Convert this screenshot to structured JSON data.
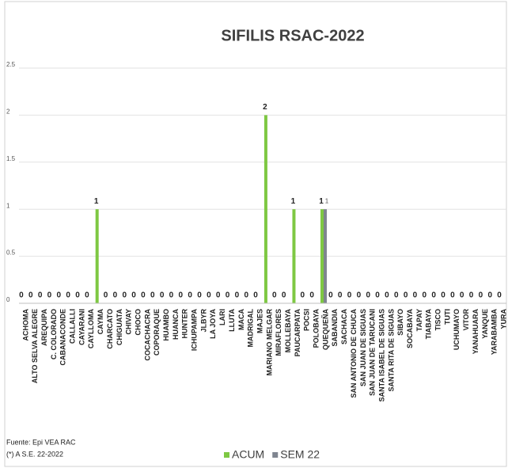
{
  "chart_data": {
    "type": "bar",
    "title": "SIFILIS RSAC-2022",
    "annotations": [
      "Fuente: Epi VEA RAC",
      "(*) A S.E. 22-2022"
    ],
    "categories": [
      "ACHOMA",
      "ALTO SELVA ALEGRE",
      "AREQUIPA",
      "C. COLORADO",
      "CABANACONDE",
      "CALLALLI",
      "CAYARANI",
      "CAYLLOMA",
      "CAYMA",
      "CHARCATO",
      "CHIGUATA",
      "CHIVAY",
      "CHOCO",
      "COCACHACRA",
      "COPORAQUE",
      "HUAMBO",
      "HUANCA",
      "HUNTER",
      "ICHUPAMPA",
      "JLBYR",
      "LA JOYA",
      "LARI",
      "LLUTA",
      "MACA",
      "MADRIGAL",
      "MAJES",
      "MARIANO MELGAR",
      "MIRAFLORES",
      "MOLLEBAYA",
      "PAUCARPATA",
      "POCSI",
      "POLOBAYA",
      "QUEQUEÑA",
      "SABANDIA",
      "SACHACA",
      "SAN ANTONIO DE CHUCA",
      "SAN JUAN DE SIGUAS",
      "SAN JUAN DE TARUCANI",
      "SANTA ISABEL DE SIGUAS",
      "SANTA RITA DE SIGUAS",
      "SIBAYO",
      "SOCABAYA",
      "TAPAY",
      "TIABAYA",
      "TISCO",
      "TUTI",
      "UCHUMAYO",
      "VITOR",
      "YANAHUARA",
      "YANQUE",
      "YARABAMBA",
      "YURA"
    ],
    "series": [
      {
        "name": "ACUM",
        "color": "#7ec843",
        "values": [
          0,
          0,
          0,
          0,
          0,
          0,
          0,
          0,
          1,
          0,
          0,
          0,
          0,
          0,
          0,
          0,
          0,
          0,
          0,
          0,
          0,
          0,
          0,
          0,
          0,
          0,
          2,
          0,
          0,
          1,
          0,
          0,
          1,
          0,
          0,
          0,
          0,
          0,
          0,
          0,
          0,
          0,
          0,
          0,
          0,
          0,
          0,
          0,
          0,
          0,
          0,
          0
        ]
      },
      {
        "name": "SEM 22",
        "color": "#7f8590",
        "values": [
          0,
          0,
          0,
          0,
          0,
          0,
          0,
          0,
          0,
          0,
          0,
          0,
          0,
          0,
          0,
          0,
          0,
          0,
          0,
          0,
          0,
          0,
          0,
          0,
          0,
          0,
          0,
          0,
          0,
          0,
          0,
          0,
          1,
          0,
          0,
          0,
          0,
          0,
          0,
          0,
          0,
          0,
          0,
          0,
          0,
          0,
          0,
          0,
          0,
          0,
          0,
          0
        ],
        "value_labels": [
          null,
          null,
          null,
          null,
          null,
          null,
          null,
          null,
          null,
          null,
          null,
          null,
          null,
          null,
          null,
          null,
          null,
          null,
          null,
          null,
          null,
          null,
          null,
          null,
          null,
          null,
          null,
          null,
          null,
          null,
          null,
          null,
          "1",
          null,
          null,
          null,
          null,
          null,
          null,
          null,
          null,
          null,
          null,
          null,
          null,
          null,
          null,
          null,
          null,
          null,
          null,
          null
        ]
      }
    ],
    "ylim": [
      0,
      2.5
    ],
    "yticks": [
      0,
      0.5,
      1,
      1.5,
      2,
      2.5
    ],
    "grid": true,
    "legend": "bottom"
  }
}
